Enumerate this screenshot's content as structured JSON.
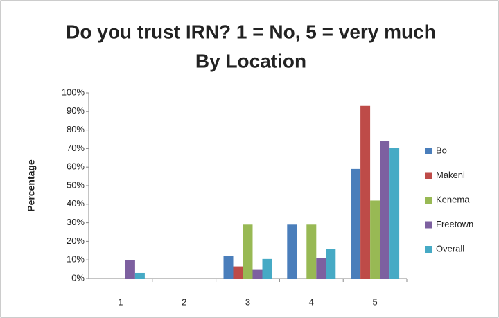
{
  "chart_data": {
    "type": "bar",
    "title": "Do you trust IRN? 1 = No, 5 = very much",
    "subtitle": "By Location",
    "ylabel": "Percentage",
    "categories": [
      "1",
      "2",
      "3",
      "4",
      "5"
    ],
    "series": [
      {
        "name": "Bo",
        "color": "#4a7ebb",
        "values": [
          0,
          0,
          12,
          29,
          59
        ]
      },
      {
        "name": "Makeni",
        "color": "#be4b48",
        "values": [
          0,
          0,
          6.5,
          0,
          93
        ]
      },
      {
        "name": "Kenema",
        "color": "#98b954",
        "values": [
          0,
          0,
          29,
          29,
          42
        ]
      },
      {
        "name": "Freetown",
        "color": "#7d60a0",
        "values": [
          10,
          0,
          5,
          11,
          74
        ]
      },
      {
        "name": "Overall",
        "color": "#46aac5",
        "values": [
          3,
          0,
          10.5,
          16,
          70.5
        ]
      }
    ],
    "ylim": [
      0,
      100
    ],
    "yticks": [
      {
        "value": 0,
        "label": "0%"
      },
      {
        "value": 10,
        "label": "10%"
      },
      {
        "value": 20,
        "label": "20%"
      },
      {
        "value": 30,
        "label": "30%"
      },
      {
        "value": 40,
        "label": "40%"
      },
      {
        "value": 50,
        "label": "50%"
      },
      {
        "value": 60,
        "label": "60%"
      },
      {
        "value": 70,
        "label": "70%"
      },
      {
        "value": 80,
        "label": "80%"
      },
      {
        "value": 90,
        "label": "90%"
      },
      {
        "value": 100,
        "label": "100%"
      }
    ],
    "grid": false,
    "legend": "right"
  }
}
